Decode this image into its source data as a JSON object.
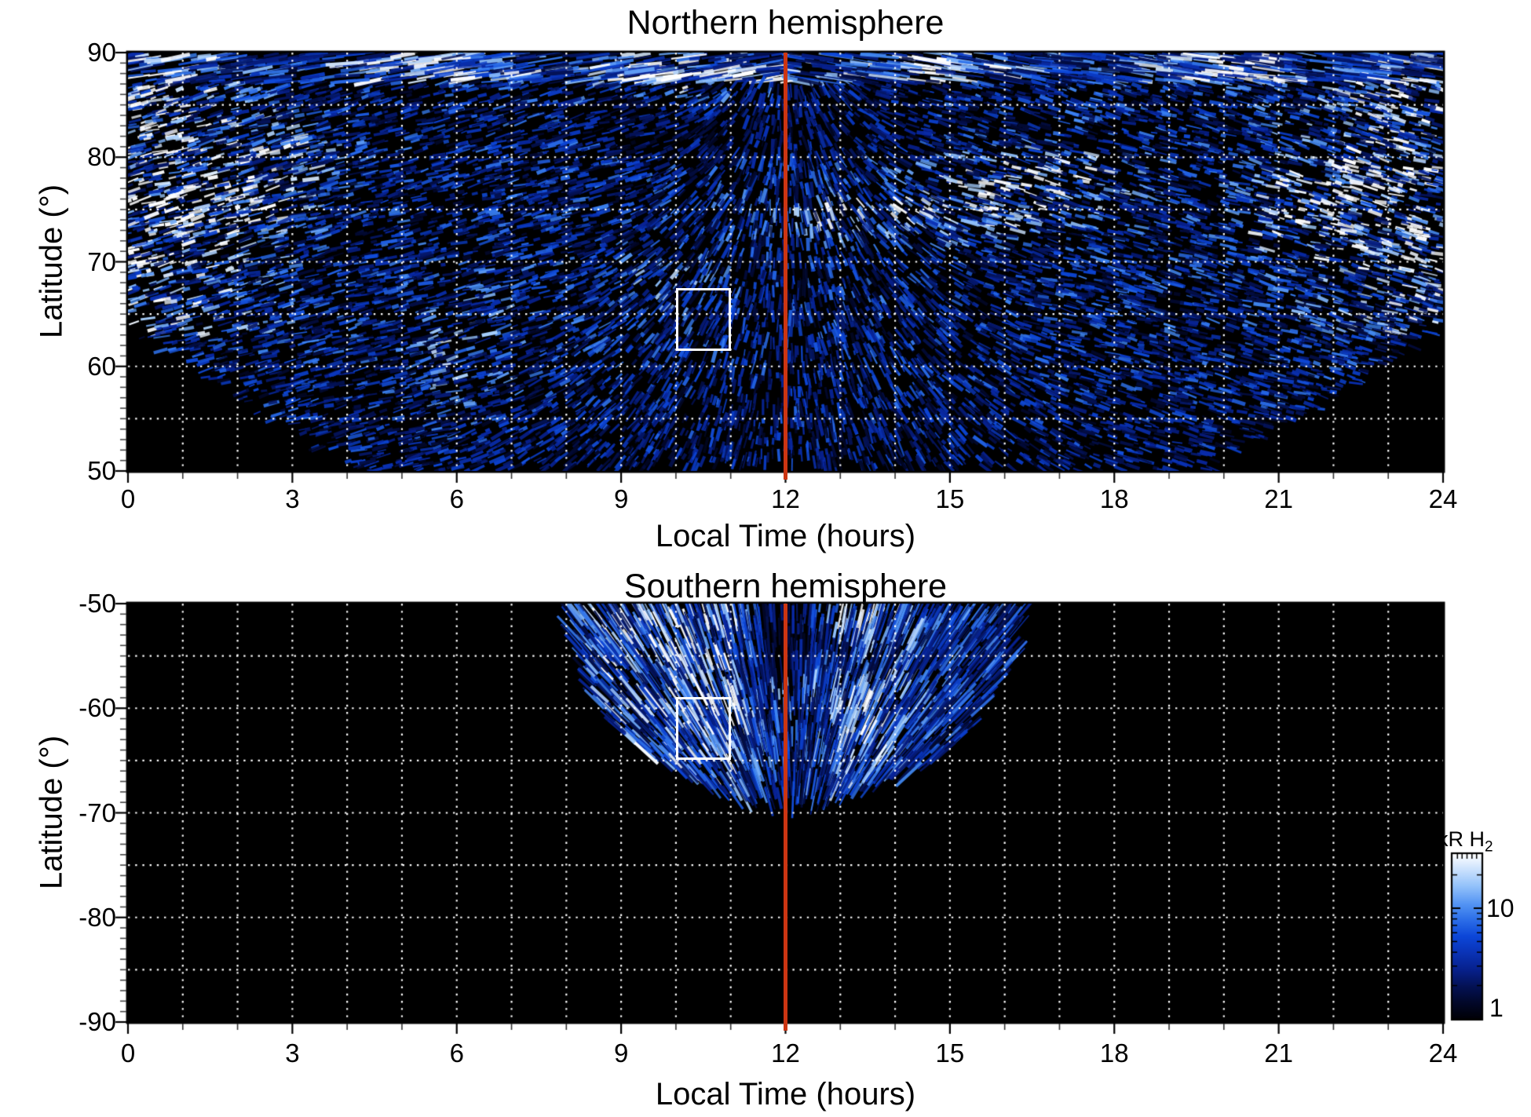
{
  "page": {
    "background": "#ffffff"
  },
  "panels": [
    {
      "id": "north",
      "title": "Northern hemisphere",
      "xlabel": "Local Time (hours)",
      "ylabel": "Latitude (°)",
      "x_ticks": [
        "0",
        "3",
        "6",
        "9",
        "12",
        "15",
        "18",
        "21",
        "24"
      ],
      "y_ticks": [
        "90",
        "80",
        "70",
        "60",
        "50"
      ],
      "noon_line": {
        "local_time": 12,
        "color": "#cc3512"
      },
      "roi_box": {
        "local_time": [
          10,
          11
        ],
        "latitude": [
          67.5,
          61.5
        ],
        "color": "#ffffff"
      }
    },
    {
      "id": "south",
      "title": "Southern hemisphere",
      "xlabel": "Local Time (hours)",
      "ylabel": "Latitude (°)",
      "x_ticks": [
        "0",
        "3",
        "6",
        "9",
        "12",
        "15",
        "18",
        "21",
        "24"
      ],
      "y_ticks": [
        "-50",
        "-60",
        "-70",
        "-80",
        "-90"
      ],
      "noon_line": {
        "local_time": 12,
        "color": "#cc3512"
      },
      "roi_box": {
        "local_time": [
          10,
          11
        ],
        "latitude": [
          -58.9,
          -64.9
        ],
        "color": "#ffffff"
      }
    }
  ],
  "colorbar": {
    "title_main": "kR H",
    "title_sub": "2",
    "tick_labels": [
      "10",
      "1"
    ],
    "tick_values": [
      10,
      1
    ],
    "scale": "log",
    "value_range": [
      1,
      30
    ]
  },
  "chart_data": [
    {
      "type": "heatmap",
      "title": "Northern hemisphere",
      "xlabel": "Local Time (hours)",
      "ylabel": "Latitude (°)",
      "xlim": [
        0,
        24
      ],
      "ylim": [
        50,
        90
      ],
      "x_major_ticks": [
        0,
        3,
        6,
        9,
        12,
        15,
        18,
        21,
        24
      ],
      "x_minor_step_hours": 1,
      "y_major_ticks": [
        50,
        60,
        70,
        80,
        90
      ],
      "y_minor_step_degrees": 1,
      "grid": {
        "style": "white dotted",
        "x_step_hours": 1,
        "y_step_degrees": 5
      },
      "value_unit": "kR H2",
      "value_scale": "log",
      "value_range": [
        1,
        30
      ],
      "colormap": [
        "#000000",
        "#06259e",
        "#0a46d8",
        "#3f86f2",
        "#9cc8fb",
        "#ffffff"
      ],
      "annotations": [
        {
          "type": "vline",
          "local_time": 12,
          "color": "#cc3512"
        },
        {
          "type": "box",
          "local_time": [
            10,
            11
          ],
          "latitude": [
            61.5,
            67.5
          ],
          "color": "#ffffff"
        }
      ],
      "coverage_notes": "Speckled H2 auroral emission swaths at all local times poleward of ~70°; brightest arcs near 0-3 h and 20-24 h at 70-85° and a bright band at 88-90°; dayside fan between ~4.5 and ~19.5 h extends down to 50°; black (no data) corners below ~64° before ~4.5 h and after ~19.5 h."
    },
    {
      "type": "heatmap",
      "title": "Southern hemisphere",
      "xlabel": "Local Time (hours)",
      "ylabel": "Latitude (°)",
      "xlim": [
        0,
        24
      ],
      "ylim": [
        -90,
        -50
      ],
      "x_major_ticks": [
        0,
        3,
        6,
        9,
        12,
        15,
        18,
        21,
        24
      ],
      "x_minor_step_hours": 1,
      "y_major_ticks": [
        -90,
        -80,
        -70,
        -60,
        -50
      ],
      "y_minor_step_degrees": 1,
      "grid": {
        "style": "white dotted",
        "x_step_hours": 1,
        "y_step_degrees": 5
      },
      "value_unit": "kR H2",
      "value_scale": "log",
      "value_range": [
        1,
        30
      ],
      "colormap": [
        "#000000",
        "#06259e",
        "#0a46d8",
        "#3f86f2",
        "#9cc8fb",
        "#ffffff"
      ],
      "annotations": [
        {
          "type": "vline",
          "local_time": 12,
          "color": "#cc3512"
        },
        {
          "type": "box",
          "local_time": [
            10,
            11
          ],
          "latitude": [
            -58.9,
            -64.9
          ],
          "color": "#ffffff"
        }
      ],
      "coverage_notes": "Data confined to a dayside fan between ~8 and ~16 h local time, from -50° down to ~-68.5° near noon; bright blue radial streaks converge toward ~12 h with a darker notch near 11.5-12.5 h above -56°; rest of panel is black (no data)."
    }
  ]
}
